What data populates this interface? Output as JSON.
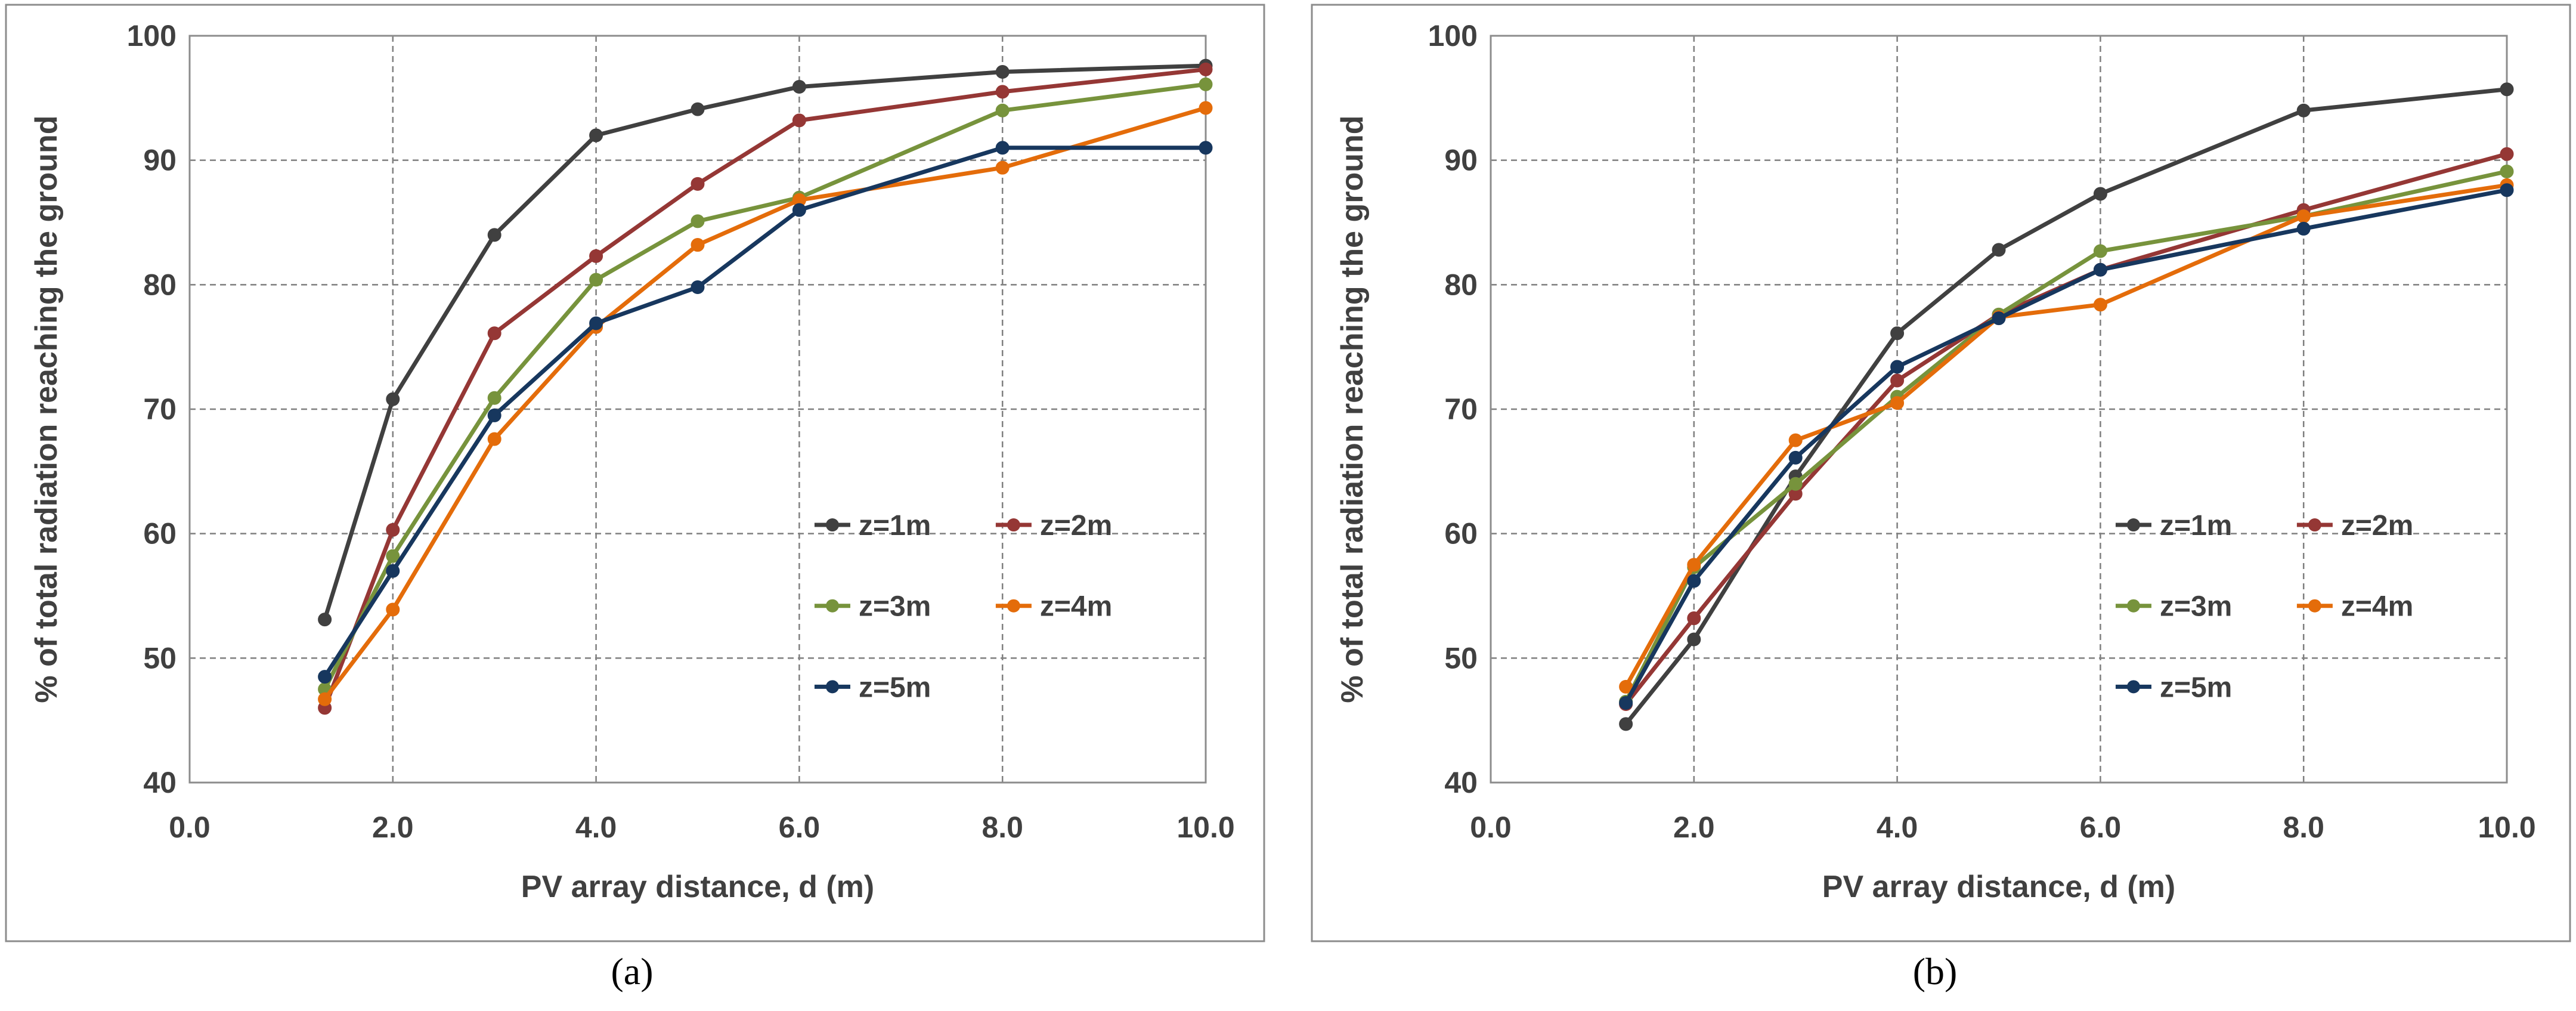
{
  "chart_data": [
    {
      "type": "line",
      "panel_label": "(a)",
      "xlabel": "PV array distance, d (m)",
      "ylabel": "% of total radiation reaching the ground",
      "xlim": [
        0,
        10
      ],
      "ylim": [
        40,
        100
      ],
      "x_ticks": [
        "0.0",
        "2.0",
        "4.0",
        "6.0",
        "8.0",
        "10.0"
      ],
      "y_ticks": [
        "40",
        "50",
        "60",
        "70",
        "80",
        "90",
        "100"
      ],
      "grid": true,
      "legend_position": "lower-right",
      "x": [
        1.33,
        2,
        3,
        4,
        5,
        6,
        8,
        10
      ],
      "series": [
        {
          "name": "z=1m",
          "color": "#404040",
          "values": [
            53.1,
            70.8,
            84.0,
            92.0,
            94.1,
            95.9,
            97.1,
            97.6
          ]
        },
        {
          "name": "z=2m",
          "color": "#953735",
          "values": [
            46.0,
            60.3,
            76.1,
            82.3,
            88.1,
            93.2,
            95.5,
            97.3
          ]
        },
        {
          "name": "z=3m",
          "color": "#77933C",
          "values": [
            47.5,
            58.2,
            70.9,
            80.4,
            85.1,
            87.0,
            94.0,
            96.1
          ]
        },
        {
          "name": "z=4m",
          "color": "#E46C0A",
          "values": [
            46.7,
            53.9,
            67.6,
            76.6,
            83.2,
            86.8,
            89.4,
            94.2
          ]
        },
        {
          "name": "z=5m",
          "color": "#17375E",
          "values": [
            48.5,
            57.0,
            69.5,
            76.9,
            79.8,
            86.0,
            91.0,
            91.0
          ]
        }
      ]
    },
    {
      "type": "line",
      "panel_label": "(b)",
      "xlabel": "PV array distance, d (m)",
      "ylabel": "% of total radiation reaching the ground",
      "xlim": [
        0,
        10
      ],
      "ylim": [
        40,
        100
      ],
      "x_ticks": [
        "0.0",
        "2.0",
        "4.0",
        "6.0",
        "8.0",
        "10.0"
      ],
      "y_ticks": [
        "40",
        "50",
        "60",
        "70",
        "80",
        "90",
        "100"
      ],
      "grid": true,
      "legend_position": "lower-right",
      "x": [
        1.33,
        2,
        3,
        4,
        5,
        6,
        8,
        10
      ],
      "series": [
        {
          "name": "z=1m",
          "color": "#404040",
          "values": [
            44.7,
            51.5,
            64.6,
            76.1,
            82.8,
            87.3,
            94.0,
            95.7
          ]
        },
        {
          "name": "z=2m",
          "color": "#953735",
          "values": [
            46.3,
            53.2,
            63.2,
            72.3,
            77.6,
            81.2,
            86.0,
            90.5
          ]
        },
        {
          "name": "z=3m",
          "color": "#77933C",
          "values": [
            46.5,
            57.3,
            64.0,
            71.0,
            77.6,
            82.7,
            85.5,
            89.1
          ]
        },
        {
          "name": "z=4m",
          "color": "#E46C0A",
          "values": [
            47.7,
            57.5,
            67.5,
            70.5,
            77.4,
            78.4,
            85.5,
            88.0
          ]
        },
        {
          "name": "z=5m",
          "color": "#17375E",
          "values": [
            46.4,
            56.2,
            66.1,
            73.4,
            77.3,
            81.2,
            84.5,
            87.6
          ]
        }
      ]
    }
  ]
}
